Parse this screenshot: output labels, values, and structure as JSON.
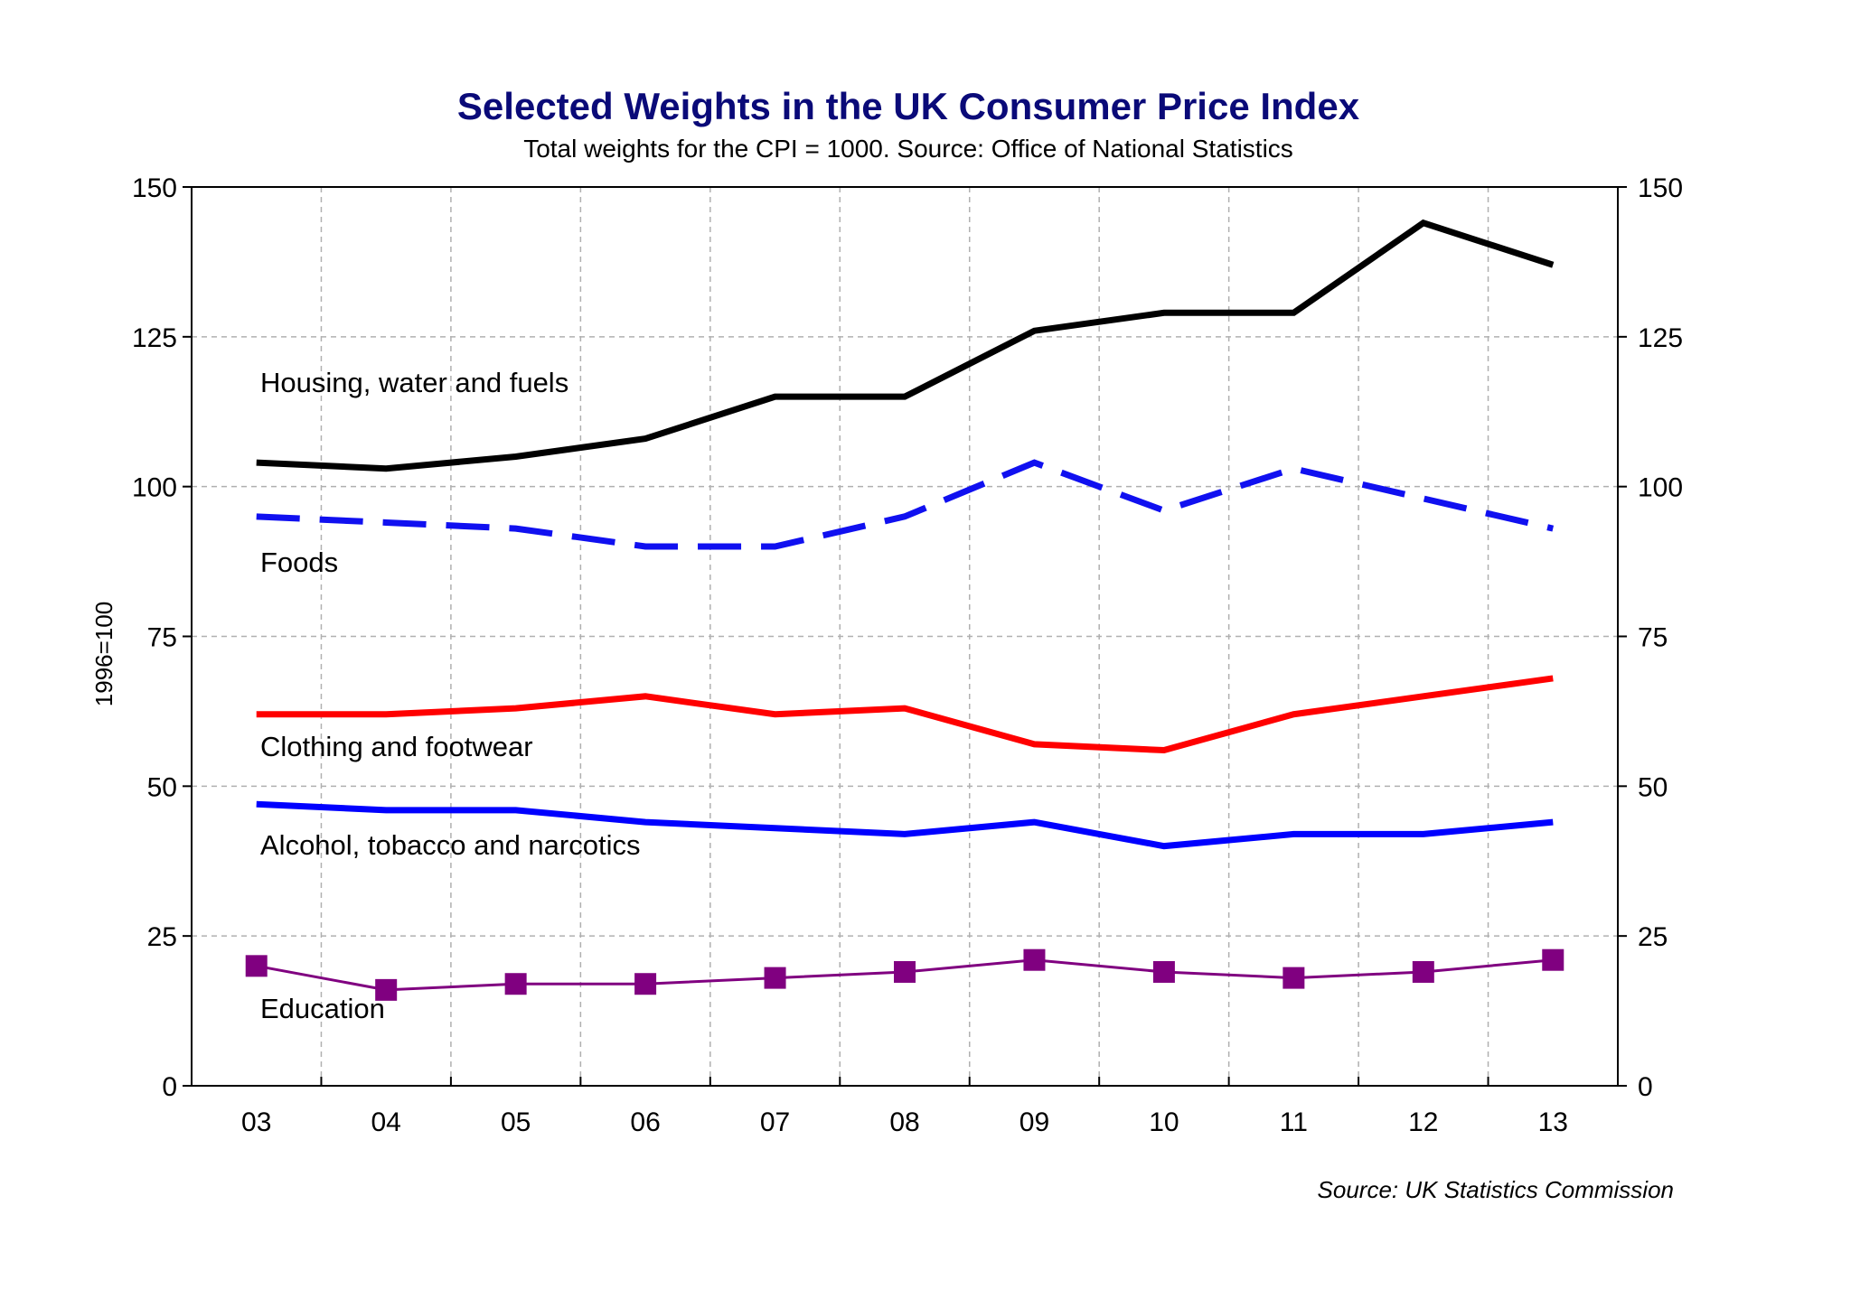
{
  "chart_data": {
    "type": "line",
    "title": "Selected Weights in the UK Consumer Price Index",
    "subtitle": "Total weights for the CPI = 1000. Source: Office of National Statistics",
    "ylabel": "1996=100",
    "source": "Source: UK Statistics Commission",
    "ylim": [
      0,
      150
    ],
    "yticks": [
      0,
      25,
      50,
      75,
      100,
      125,
      150
    ],
    "categories": [
      "03",
      "04",
      "05",
      "06",
      "07",
      "08",
      "09",
      "10",
      "11",
      "12",
      "13"
    ],
    "grid": true,
    "series": [
      {
        "name": "Housing, water and fuels",
        "color": "#000000",
        "style": "solid",
        "values": [
          104,
          103,
          105,
          108,
          115,
          115,
          126,
          129,
          129,
          144,
          137
        ]
      },
      {
        "name": "Foods",
        "color": "#1010f0",
        "style": "dashed",
        "values": [
          95,
          94,
          93,
          90,
          90,
          95,
          104,
          96,
          103,
          98,
          93
        ]
      },
      {
        "name": "Clothing and footwear",
        "color": "#ff0000",
        "style": "solid",
        "values": [
          62,
          62,
          63,
          65,
          62,
          63,
          57,
          56,
          62,
          65,
          68
        ]
      },
      {
        "name": "Alcohol, tobacco and narcotics",
        "color": "#0000ff",
        "style": "solid",
        "values": [
          47,
          46,
          46,
          44,
          43,
          42,
          44,
          40,
          42,
          42,
          44
        ]
      },
      {
        "name": "Education",
        "color": "#800080",
        "style": "solid-markers",
        "values": [
          20,
          16,
          17,
          17,
          18,
          19,
          21,
          19,
          18,
          19,
          21
        ]
      }
    ]
  }
}
